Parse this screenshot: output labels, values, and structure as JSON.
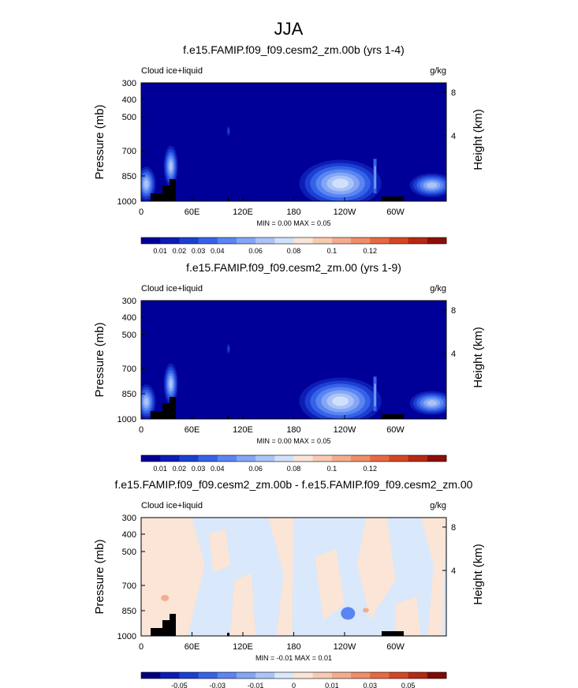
{
  "title": "JJA",
  "colors": {
    "field_levels": [
      "#000099",
      "#0d1cb5",
      "#1c3fd1",
      "#3563e8",
      "#5a85f2",
      "#84a6f5",
      "#abc4f7",
      "#d2e1fb",
      "#f9e4d8",
      "#f7cbb2",
      "#f3ad8e",
      "#ee8d68",
      "#e66943",
      "#d64624",
      "#b52a12",
      "#8b1009"
    ],
    "diff_levels": [
      "#000080",
      "#0d1cb5",
      "#1c3fd1",
      "#3563e8",
      "#5a85f2",
      "#84a6f5",
      "#abc4f7",
      "#d9e8fb",
      "#fbe5d6",
      "#f7cbb2",
      "#f3ad8e",
      "#ee8d68",
      "#e66943",
      "#d64624",
      "#b52a12",
      "#800a05"
    ],
    "terrain": "#000000"
  },
  "chart_data": [
    {
      "type": "heatmap",
      "panel_title": "f.e15.FAMIP.f09_f09.cesm2_zm.00b (yrs 1-4)",
      "left_label": "Cloud ice+liquid",
      "right_label": "g/kg",
      "ylabel": "Pressure (mb)",
      "ylabel_right": "Height (km)",
      "yticks": [
        "300",
        "400",
        "500",
        "700",
        "850",
        "1000"
      ],
      "yticks_right": [
        "8",
        "4"
      ],
      "xticks": [
        "0",
        "60E",
        "120E",
        "180",
        "120W",
        "60W"
      ],
      "minmax": "MIN =   0.00  MAX =   0.05",
      "colorbar_labels": [
        "0.01",
        "0.02",
        "0.03",
        "0.04",
        "0.06",
        "0.08",
        "0.1",
        "0.12"
      ],
      "field_min": 0.0,
      "field_max": 0.05,
      "features": [
        {
          "lon": 6,
          "p": 840,
          "value": 0.04
        },
        {
          "lon": 35,
          "p": 700,
          "value": 0.04
        },
        {
          "lon": 235,
          "p": 835,
          "value": 0.05
        },
        {
          "lon": 343,
          "p": 850,
          "value": 0.04
        },
        {
          "lon": 103,
          "p": 490,
          "value": 0.01
        }
      ]
    },
    {
      "type": "heatmap",
      "panel_title": "f.e15.FAMIP.f09_f09.cesm2_zm.00 (yrs 1-9)",
      "left_label": "Cloud ice+liquid",
      "right_label": "g/kg",
      "ylabel": "Pressure (mb)",
      "ylabel_right": "Height (km)",
      "yticks": [
        "300",
        "400",
        "500",
        "700",
        "850",
        "1000"
      ],
      "yticks_right": [
        "8",
        "4"
      ],
      "xticks": [
        "0",
        "60E",
        "120E",
        "180",
        "120W",
        "60W"
      ],
      "minmax": "MIN =   0.00  MAX =   0.05",
      "colorbar_labels": [
        "0.01",
        "0.02",
        "0.03",
        "0.04",
        "0.06",
        "0.08",
        "0.1",
        "0.12"
      ],
      "field_min": 0.0,
      "field_max": 0.05,
      "features": [
        {
          "lon": 6,
          "p": 840,
          "value": 0.04
        },
        {
          "lon": 35,
          "p": 700,
          "value": 0.04
        },
        {
          "lon": 235,
          "p": 835,
          "value": 0.05
        },
        {
          "lon": 343,
          "p": 850,
          "value": 0.04
        },
        {
          "lon": 103,
          "p": 490,
          "value": 0.01
        }
      ]
    },
    {
      "type": "heatmap",
      "panel_title": "f.e15.FAMIP.f09_f09.cesm2_zm.00b - f.e15.FAMIP.f09_f09.cesm2_zm.00",
      "left_label": "Cloud ice+liquid",
      "right_label": "g/kg",
      "ylabel": "Pressure (mb)",
      "ylabel_right": "Height (km)",
      "yticks": [
        "300",
        "400",
        "500",
        "700",
        "850",
        "1000"
      ],
      "yticks_right": [
        "8",
        "4"
      ],
      "xticks": [
        "0",
        "60E",
        "120E",
        "180",
        "120W",
        "60W"
      ],
      "minmax": "MIN =  -0.01  MAX =   0.01",
      "colorbar_labels": [
        "-0.05",
        "-0.03",
        "-0.01",
        "0",
        "0.01",
        "0.03",
        "0.05"
      ],
      "field_min": -0.01,
      "field_max": 0.01
    }
  ]
}
